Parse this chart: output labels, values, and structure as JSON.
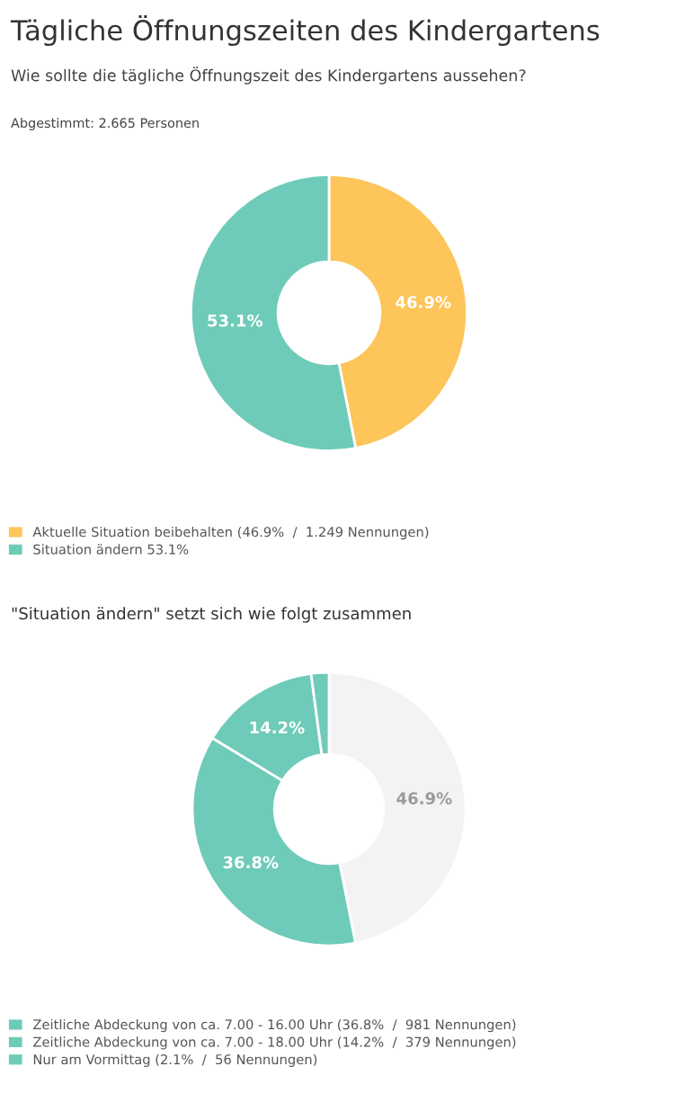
{
  "chart_data": [
    {
      "type": "donut",
      "title": "Tägliche Öffnungszeiten des Kindergartens",
      "subtitle": "Wie sollte die tägliche Öffnungszeit des Kindergartens aussehen?",
      "annotations": [
        "Abgestimmt: 2.665 Personen"
      ],
      "categories": [
        "Aktuelle Situation beibehalten (46.9%  /  1.249 Nennungen)",
        "Situation ändern 53.1%"
      ],
      "values": [
        46.9,
        53.1
      ],
      "colors": [
        "#fdc55a",
        "#6fcbb9"
      ],
      "value_labels": [
        "46.9%",
        "53.1%"
      ],
      "legend": "bottom"
    },
    {
      "type": "donut",
      "title": "\"Situation ändern\" setzt sich wie folgt zusammen",
      "categories": [
        null,
        "Zeitliche Abdeckung von ca. 7.00 - 16.00 Uhr (36.8%  /  981 Nennungen)",
        "Zeitliche Abdeckung von ca. 7.00 - 18.00 Uhr (14.2%  /  379 Nennungen)",
        "Nur am Vormittag (2.1%  /  56 Nennungen)"
      ],
      "values": [
        46.9,
        36.8,
        14.2,
        2.1
      ],
      "colors": [
        "#f3f3f3",
        "#6fcbb9",
        "#6fcbb9",
        "#6fcbb9"
      ],
      "value_labels": [
        "46.9%",
        "36.8%",
        "14.2%",
        null
      ],
      "legend": "bottom"
    }
  ]
}
